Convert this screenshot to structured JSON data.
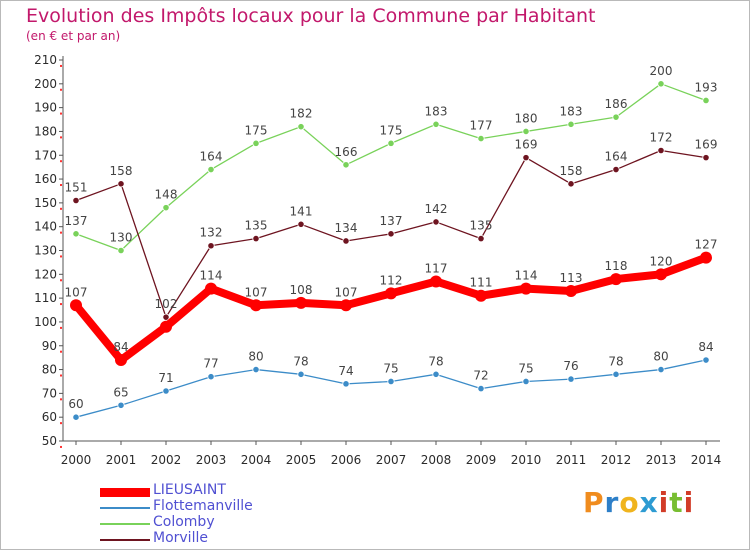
{
  "chart_data": {
    "type": "line",
    "title": "Evolution des Impôts locaux pour la Commune par Habitant",
    "subtitle": "(en € et par an)",
    "x": [
      "2000",
      "2001",
      "2002",
      "2003",
      "2004",
      "2005",
      "2006",
      "2007",
      "2008",
      "2009",
      "2010",
      "2011",
      "2012",
      "2013",
      "2014"
    ],
    "ylim": [
      50,
      210
    ],
    "yticks": [
      50,
      60,
      70,
      80,
      90,
      100,
      110,
      120,
      130,
      140,
      150,
      160,
      170,
      180,
      190,
      200,
      210
    ],
    "series": [
      {
        "name": "LIEUSAINT",
        "color": "#ff0000",
        "emphasis": true,
        "values": [
          107,
          84,
          98,
          114,
          107,
          108,
          107,
          112,
          117,
          111,
          114,
          113,
          118,
          120,
          127
        ],
        "labels": [
          "107",
          "84",
          "",
          "114",
          "107",
          "108",
          "107",
          "112",
          "117",
          "111",
          "114",
          "113",
          "118",
          "120",
          "127"
        ]
      },
      {
        "name": "Flottemanville",
        "color": "#3c8cc8",
        "values": [
          60,
          65,
          71,
          77,
          80,
          78,
          74,
          75,
          78,
          72,
          75,
          76,
          78,
          80,
          84
        ],
        "labels": [
          "60",
          "65",
          "71",
          "77",
          "80",
          "78",
          "74",
          "75",
          "78",
          "72",
          "75",
          "76",
          "78",
          "80",
          "84"
        ]
      },
      {
        "name": "Colomby",
        "color": "#79d25a",
        "values": [
          137,
          130,
          148,
          164,
          175,
          182,
          166,
          175,
          183,
          177,
          180,
          183,
          186,
          200,
          193
        ],
        "labels": [
          "137",
          "130",
          "148",
          "164",
          "175",
          "182",
          "166",
          "175",
          "183",
          "177",
          "180",
          "183",
          "186",
          "200",
          "193"
        ]
      },
      {
        "name": "Morville",
        "color": "#6e1420",
        "values": [
          151,
          158,
          102,
          132,
          135,
          141,
          134,
          137,
          142,
          135,
          169,
          158,
          164,
          172,
          169
        ],
        "labels": [
          "151",
          "158",
          "102",
          "132",
          "135",
          "141",
          "134",
          "137",
          "142",
          "135",
          "169",
          "158",
          "164",
          "172",
          "169"
        ]
      }
    ],
    "legend_position": "bottom-left",
    "grid": false
  },
  "brand": {
    "letters": [
      "P",
      "r",
      "o",
      "x",
      "i",
      "t",
      "i"
    ],
    "colors": [
      "#f08c1e",
      "#2d7fc8",
      "#f0b41e",
      "#2d9bd2",
      "#d23c28",
      "#78be32",
      "#d23c28"
    ]
  }
}
